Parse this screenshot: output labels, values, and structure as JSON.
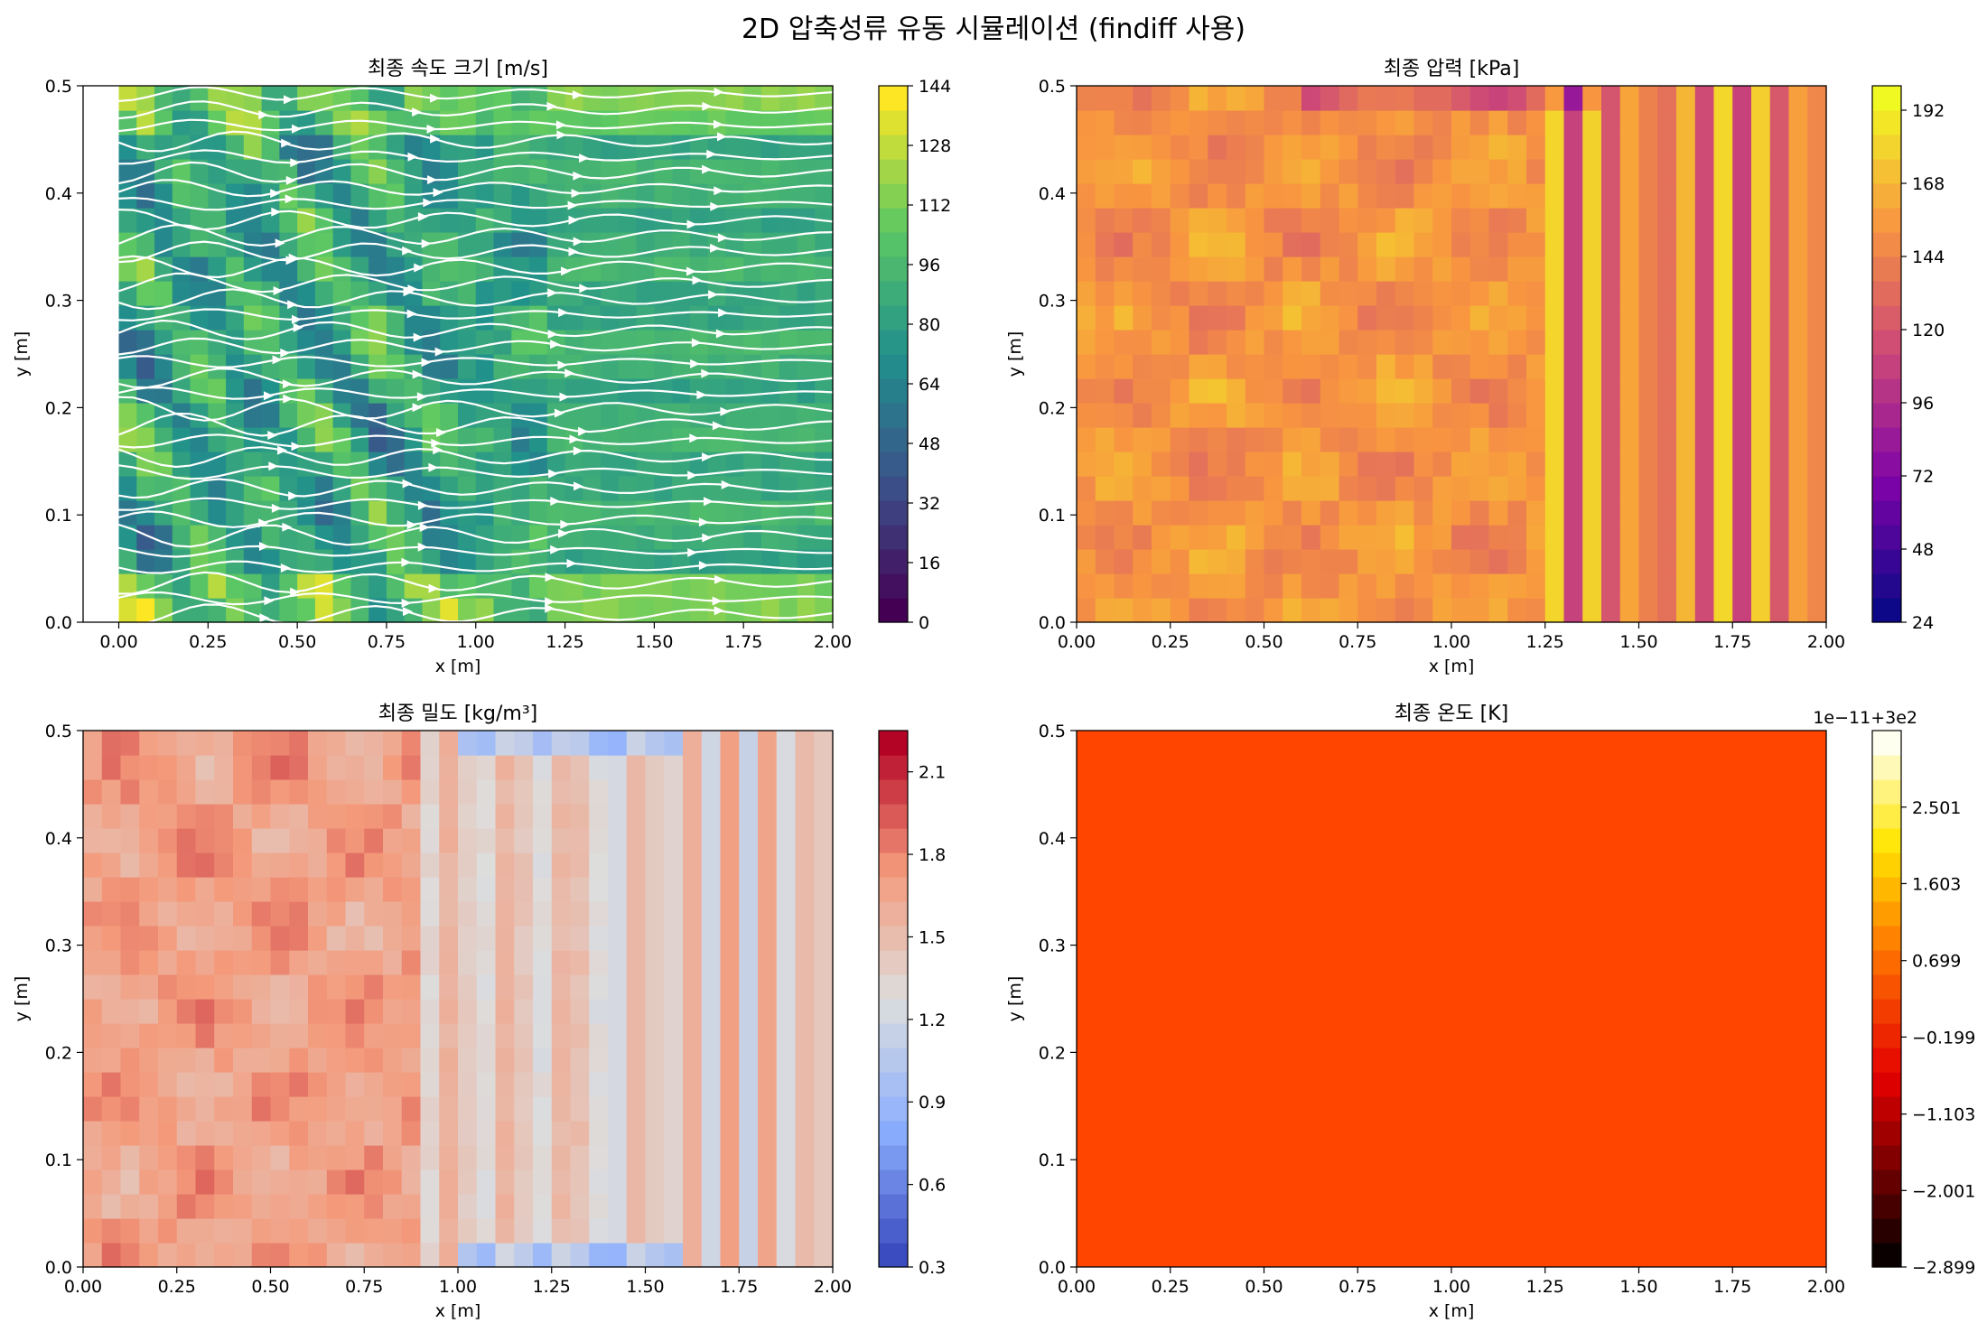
{
  "figure": {
    "suptitle": "2D 압축성류 유동 시뮬레이션 (findiff 사용)"
  },
  "chart_data": [
    {
      "type": "heatmap",
      "id": "velocity",
      "title": "최종 속도 크기 [m/s]",
      "xlabel": "x [m]",
      "ylabel": "y [m]",
      "xlim": [
        -0.1,
        2.0
      ],
      "ylim": [
        0.0,
        0.5
      ],
      "xticks": [
        "0.00",
        "0.25",
        "0.50",
        "0.75",
        "1.00",
        "1.25",
        "1.50",
        "1.75",
        "2.00"
      ],
      "yticks": [
        "0.0",
        "0.1",
        "0.2",
        "0.3",
        "0.4",
        "0.5"
      ],
      "colormap": "viridis",
      "colorbar_range": [
        0,
        144
      ],
      "colorbar_ticks": [
        "0",
        "16",
        "32",
        "48",
        "64",
        "80",
        "96",
        "112",
        "128",
        "144"
      ],
      "overlay": "streamlines",
      "streamline_color": "#ffffff"
    },
    {
      "type": "heatmap",
      "id": "pressure",
      "title": "최종 압력 [kPa]",
      "xlabel": "x [m]",
      "ylabel": "y [m]",
      "xlim": [
        0.0,
        2.0
      ],
      "ylim": [
        0.0,
        0.5
      ],
      "xticks": [
        "0.00",
        "0.25",
        "0.50",
        "0.75",
        "1.00",
        "1.25",
        "1.50",
        "1.75",
        "2.00"
      ],
      "yticks": [
        "0.0",
        "0.1",
        "0.2",
        "0.3",
        "0.4",
        "0.5"
      ],
      "colormap": "plasma",
      "colorbar_range": [
        24,
        200
      ],
      "colorbar_ticks": [
        "24",
        "48",
        "72",
        "96",
        "120",
        "144",
        "168",
        "192"
      ]
    },
    {
      "type": "heatmap",
      "id": "density",
      "title": "최종 밀도 [kg/m³]",
      "xlabel": "x [m]",
      "ylabel": "y [m]",
      "xlim": [
        0.0,
        2.0
      ],
      "ylim": [
        0.0,
        0.5
      ],
      "xticks": [
        "0.00",
        "0.25",
        "0.50",
        "0.75",
        "1.00",
        "1.25",
        "1.50",
        "1.75",
        "2.00"
      ],
      "yticks": [
        "0.0",
        "0.1",
        "0.2",
        "0.3",
        "0.4",
        "0.5"
      ],
      "colormap": "coolwarm",
      "colorbar_range": [
        0.3,
        2.25
      ],
      "colorbar_ticks": [
        "0.3",
        "0.6",
        "0.9",
        "1.2",
        "1.5",
        "1.8",
        "2.1"
      ]
    },
    {
      "type": "heatmap",
      "id": "temperature",
      "title": "최종 온도 [K]",
      "xlabel": "x [m]",
      "ylabel": "y [m]",
      "xlim": [
        0.0,
        2.0
      ],
      "ylim": [
        0.0,
        0.5
      ],
      "xticks": [
        "0.00",
        "0.25",
        "0.50",
        "0.75",
        "1.00",
        "1.25",
        "1.50",
        "1.75",
        "2.00"
      ],
      "yticks": [
        "0.0",
        "0.1",
        "0.2",
        "0.3",
        "0.4",
        "0.5"
      ],
      "colormap": "hot",
      "colorbar_range": [
        -2.899,
        3.4
      ],
      "colorbar_ticks": [
        "2.501",
        "1.603",
        "0.699",
        "−0.199",
        "−1.103",
        "−2.001",
        "−2.899"
      ],
      "colorbar_offset_text": "1e−11+3e2",
      "uniform_value_offset": -0.199,
      "uniform_color": "#ff4500"
    }
  ]
}
